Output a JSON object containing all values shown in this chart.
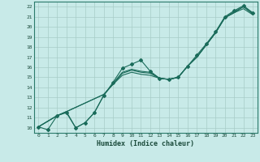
{
  "xlabel": "Humidex (Indice chaleur)",
  "bg_color": "#c8eae8",
  "grid_color": "#a8ccc8",
  "line_color": "#1a6b5a",
  "xlim": [
    -0.5,
    23.5
  ],
  "ylim": [
    9.5,
    22.5
  ],
  "xticks": [
    0,
    1,
    2,
    3,
    4,
    5,
    6,
    7,
    8,
    9,
    10,
    11,
    12,
    13,
    14,
    15,
    16,
    17,
    18,
    19,
    20,
    21,
    22,
    23
  ],
  "yticks": [
    10,
    11,
    12,
    13,
    14,
    15,
    16,
    17,
    18,
    19,
    20,
    21,
    22
  ],
  "lines": [
    {
      "x": [
        0,
        1,
        2,
        3,
        4,
        5,
        6,
        7,
        8,
        9,
        10,
        11,
        12,
        13,
        14,
        15,
        16,
        17,
        18,
        19,
        20,
        21,
        22,
        23
      ],
      "y": [
        10.1,
        9.8,
        11.2,
        11.5,
        10.0,
        10.5,
        11.5,
        13.2,
        14.5,
        15.9,
        16.3,
        16.7,
        15.6,
        14.9,
        14.8,
        15.0,
        16.1,
        17.2,
        18.3,
        19.5,
        21.0,
        21.6,
        22.1,
        21.4
      ],
      "has_markers": true
    },
    {
      "x": [
        0,
        2,
        3,
        4,
        5,
        6,
        7,
        8,
        9,
        10,
        11,
        12,
        13,
        14,
        15,
        16,
        17,
        18,
        19,
        20,
        21,
        22,
        23
      ],
      "y": [
        10.1,
        11.2,
        11.6,
        10.0,
        10.5,
        11.5,
        13.2,
        14.4,
        15.5,
        15.8,
        15.6,
        15.5,
        14.9,
        14.8,
        15.0,
        16.1,
        17.0,
        18.2,
        19.4,
        20.9,
        21.5,
        22.0,
        21.3
      ],
      "has_markers": false
    },
    {
      "x": [
        0,
        2,
        3,
        7,
        8,
        9,
        10,
        11,
        12,
        13,
        14,
        15,
        16,
        17,
        18,
        19,
        20,
        21,
        22,
        23
      ],
      "y": [
        10.1,
        11.2,
        11.6,
        13.3,
        14.3,
        15.4,
        15.7,
        15.5,
        15.4,
        14.9,
        14.8,
        15.0,
        16.1,
        17.0,
        18.2,
        19.4,
        20.9,
        21.4,
        22.0,
        21.3
      ],
      "has_markers": false
    },
    {
      "x": [
        0,
        2,
        3,
        7,
        8,
        9,
        10,
        11,
        12,
        13,
        14,
        15,
        16,
        17,
        18,
        19,
        20,
        21,
        22,
        23
      ],
      "y": [
        10.1,
        11.2,
        11.6,
        13.3,
        14.3,
        15.2,
        15.5,
        15.3,
        15.2,
        14.9,
        14.8,
        15.0,
        16.1,
        17.0,
        18.2,
        19.4,
        20.9,
        21.4,
        21.8,
        21.2
      ],
      "has_markers": false
    }
  ]
}
